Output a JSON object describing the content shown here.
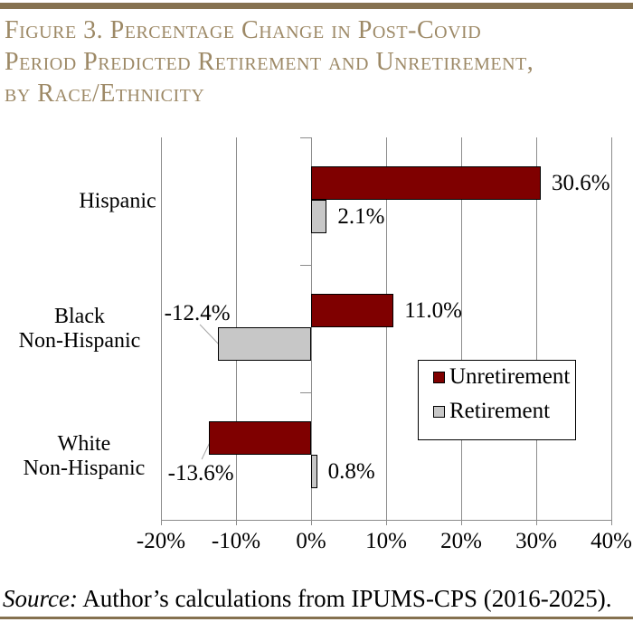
{
  "header": {
    "title_lines": [
      "Figure 3. Percentage Change in Post-Covid",
      "Period Predicted Retirement and Unretirement,",
      "by Race/Ethnicity"
    ]
  },
  "footer": {
    "source_label": "Source:",
    "source_text": " Author’s calculations from IPUMS-CPS (2016-2025)."
  },
  "colors": {
    "accent_rule": "#85714F",
    "title_text": "#9D8966",
    "unretirement": "#7F0000",
    "retirement": "#C7C7C7",
    "gridline": "#8C8C8C",
    "leader_line": "#A6A6A6",
    "label_text": "#000000"
  },
  "chart_data": {
    "type": "bar",
    "orientation": "horizontal",
    "title": "Figure 3. Percentage Change in Post-Covid Period Predicted Retirement and Unretirement, by Race/Ethnicity",
    "categories": [
      "Hispanic",
      "Black Non-Hispanic",
      "White Non-Hispanic"
    ],
    "category_label_lines": [
      [
        "Hispanic"
      ],
      [
        "Black",
        "Non-Hispanic"
      ],
      [
        "White",
        "Non-Hispanic"
      ]
    ],
    "series": [
      {
        "name": "Unretirement",
        "color": "#7F0000",
        "values": [
          30.6,
          11.0,
          -13.6
        ],
        "data_labels": [
          "30.6%",
          "11.0%",
          "-13.6%"
        ]
      },
      {
        "name": "Retirement",
        "color": "#C7C7C7",
        "values": [
          2.1,
          -12.4,
          0.8
        ],
        "data_labels": [
          "2.1%",
          "-12.4%",
          "0.8%"
        ]
      }
    ],
    "x_axis": {
      "min": -20,
      "max": 40,
      "tick_step": 10,
      "tick_labels": [
        "-20%",
        "-10%",
        "0%",
        "10%",
        "20%",
        "30%",
        "40%"
      ]
    },
    "legend": {
      "position": "inside-right",
      "entries": [
        "Unretirement",
        "Retirement"
      ]
    },
    "gridlines": "vertical-major"
  }
}
